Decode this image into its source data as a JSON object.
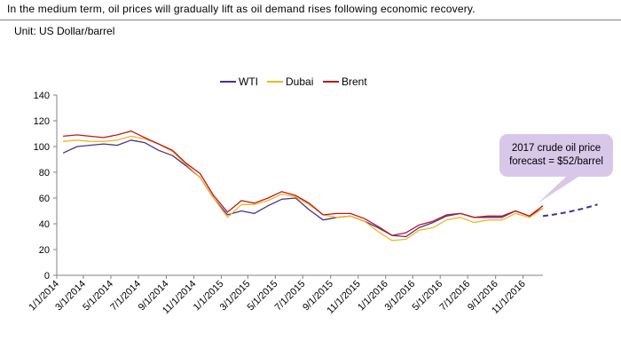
{
  "headline": "In the medium term, oil prices will gradually lift as oil demand rises following economic recovery.",
  "unit_label": "Unit: US Dollar/barrel",
  "annotation": "2017 crude oil price forecast = $52/barrel",
  "colors": {
    "WTI": "#4b3090",
    "Dubai": "#f2b71b",
    "Brent": "#c0151e",
    "forecast": "#4b3090",
    "callout": "#d9c7ea"
  },
  "chart_data": {
    "type": "line",
    "title": "",
    "xlabel": "",
    "ylabel": "",
    "ylim": [
      0,
      140
    ],
    "yticks": [
      0,
      20,
      40,
      60,
      80,
      100,
      120,
      140
    ],
    "x_tick_labels": [
      "1/1/2014",
      "3/1/2014",
      "5/1/2014",
      "7/1/2014",
      "9/1/2014",
      "11/1/2014",
      "1/1/2015",
      "3/1/2015",
      "5/1/2015",
      "7/1/2015",
      "9/1/2015",
      "11/1/2015",
      "1/1/2016",
      "3/1/2016",
      "5/1/2016",
      "7/1/2016",
      "9/1/2016",
      "11/1/2016"
    ],
    "grid": false,
    "legend": "top-center",
    "x": [
      "2014-01",
      "2014-02",
      "2014-03",
      "2014-04",
      "2014-05",
      "2014-06",
      "2014-07",
      "2014-08",
      "2014-09",
      "2014-10",
      "2014-11",
      "2014-12",
      "2015-01",
      "2015-02",
      "2015-03",
      "2015-04",
      "2015-05",
      "2015-06",
      "2015-07",
      "2015-08",
      "2015-09",
      "2015-10",
      "2015-11",
      "2015-12",
      "2016-01",
      "2016-02",
      "2016-03",
      "2016-04",
      "2016-05",
      "2016-06",
      "2016-07",
      "2016-08",
      "2016-09",
      "2016-10",
      "2016-11",
      "2016-12"
    ],
    "series": [
      {
        "name": "WTI",
        "values": [
          95,
          100,
          101,
          102,
          101,
          105,
          103,
          97,
          93,
          85,
          76,
          60,
          47,
          50,
          48,
          54,
          59,
          60,
          51,
          43,
          45,
          46,
          42,
          37,
          31,
          30,
          37,
          41,
          46,
          48,
          45,
          45,
          45,
          50,
          46,
          52
        ]
      },
      {
        "name": "Dubai",
        "values": [
          104,
          105,
          104,
          104,
          105,
          108,
          106,
          102,
          96,
          86,
          76,
          60,
          45,
          55,
          55,
          58,
          63,
          61,
          55,
          47,
          45,
          46,
          42,
          34,
          27,
          28,
          35,
          37,
          43,
          45,
          41,
          43,
          43,
          48,
          45,
          52
        ]
      },
      {
        "name": "Brent",
        "values": [
          108,
          109,
          108,
          107,
          109,
          112,
          107,
          102,
          97,
          87,
          79,
          62,
          49,
          58,
          56,
          60,
          65,
          62,
          56,
          47,
          48,
          48,
          44,
          38,
          31,
          33,
          39,
          42,
          47,
          48,
          45,
          46,
          46,
          50,
          46,
          54
        ]
      }
    ],
    "forecast": {
      "name": "2017 forecast",
      "x": [
        "2016-12",
        "2017-02",
        "2017-04"
      ],
      "values": [
        46,
        48,
        55
      ]
    }
  }
}
